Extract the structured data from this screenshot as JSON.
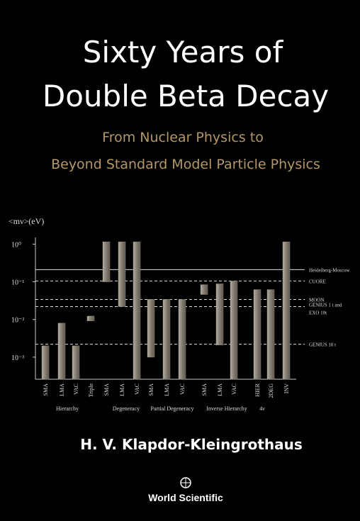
{
  "cover": {
    "title_lines": [
      "Sixty Years of",
      "Double Beta Decay"
    ],
    "subtitle_lines": [
      "From Nuclear Physics to",
      "Beyond Standard Model Particle Physics"
    ],
    "author": "H. V. Klapdor-Kleingrothaus",
    "publisher": "World Scientific"
  },
  "chart_data": {
    "type": "floating-bar",
    "y_label": "<mν>(eV)",
    "log_scale": true,
    "ylim": [
      0.00026,
      1.5
    ],
    "yticks": [
      {
        "value": 1,
        "label": "10⁰"
      },
      {
        "value": 0.1,
        "label": "10⁻¹"
      },
      {
        "value": 0.01,
        "label": "10⁻²"
      },
      {
        "value": 0.001,
        "label": "10⁻³"
      }
    ],
    "categories": [
      "SMA",
      "LMA",
      "VAC",
      "Triple",
      "SMA",
      "LMA",
      "VAC",
      "SMA",
      "LMA",
      "VAC",
      "SMA",
      "LMA",
      "VAC",
      "HIER",
      "2DEG",
      "INV"
    ],
    "low": [
      0.00026,
      0.00026,
      0.00026,
      0.0092,
      0.1,
      0.022,
      0.00026,
      0.001,
      0.00026,
      0.00026,
      0.046,
      0.0021,
      0.00026,
      0.00026,
      0.00026,
      0.00026
    ],
    "high": [
      0.002,
      0.008,
      0.002,
      0.0123,
      1.15,
      1.15,
      1.15,
      0.034,
      0.034,
      0.034,
      0.084,
      0.088,
      0.105,
      0.062,
      0.062,
      1.15
    ],
    "color": "#8c857a",
    "groups": [
      "Hierarchy",
      "Degeneracy",
      "Partial Degeneracy",
      "Inverse Hierarchy",
      "4ν"
    ],
    "reference_lines": [
      {
        "label": [
          "Heidelberg-Moscow"
        ],
        "value": 0.21,
        "style": "solid"
      },
      {
        "label": [
          "CUORE"
        ],
        "value": 0.105,
        "style": "dashed"
      },
      {
        "label": [
          "MOON"
        ],
        "value": 0.034,
        "style": "dashed"
      },
      {
        "label": [
          "GENIUS 1 t and",
          "EXO 10t"
        ],
        "value": 0.022,
        "style": "dashed"
      },
      {
        "label": [
          "GENIUS 10 t"
        ],
        "value": 0.0022,
        "style": "dashed"
      }
    ]
  }
}
